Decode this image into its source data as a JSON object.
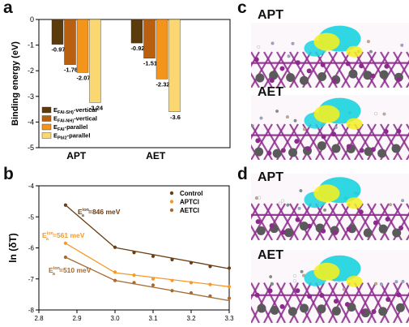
{
  "panels": {
    "a": "a",
    "b": "b",
    "c": "c",
    "d": "d"
  },
  "colors": {
    "vertical_fai_sh": "#5b3a0c",
    "vertical_fai_nh": "#b8600f",
    "fai_parallel": "#f4941b",
    "pbi_parallel": "#fbd772",
    "control": "#6b3d14",
    "aptcl": "#f59a2a",
    "aetcl": "#a76a32",
    "iso_cyan": "#17d3df",
    "iso_yellow": "#f2ef23",
    "pb": "#8e2a8d",
    "sn_gray": "#5a5a5a"
  },
  "chart_data": [
    {
      "type": "bar",
      "panel": "a",
      "categories": [
        "APT",
        "AET"
      ],
      "ylabel": "Binding energy (eV)",
      "ylim": [
        -5,
        0
      ],
      "yticks": [
        0,
        -1,
        -2,
        -3,
        -4,
        -5
      ],
      "series": [
        {
          "name": "E(FAI-SH)-vertical",
          "legend": {
            "base": "E",
            "sub": "FAI-SH)",
            "tail": "-vertical"
          },
          "values": [
            -0.97,
            -0.92
          ],
          "labels": [
            "-0.97",
            "-0.92"
          ]
        },
        {
          "name": "E(FAI-NH)-vertical",
          "legend": {
            "base": "E",
            "sub": "FAI-NH)",
            "tail": "-vertical"
          },
          "values": [
            -1.76,
            -1.51
          ],
          "labels": [
            "-1.76",
            "-1.51"
          ]
        },
        {
          "name": "EFAI-parallel",
          "legend": {
            "base": "E",
            "sub": "FAI",
            "tail": "-parallel"
          },
          "values": [
            -2.07,
            -2.32
          ],
          "labels": [
            "-2.07",
            "-2.32"
          ]
        },
        {
          "name": "EPbI2-parallel",
          "legend": {
            "base": "E",
            "sub": "PbI2",
            "tail": "-parallel"
          },
          "values": [
            -3.24,
            -3.6
          ],
          "labels": [
            "-3.24",
            "-3.6"
          ]
        }
      ]
    },
    {
      "type": "scatter",
      "panel": "b",
      "ylabel": "ln (δT)",
      "xlim": [
        2.8,
        3.3
      ],
      "ylim": [
        -8,
        -4
      ],
      "xticks": [
        "2.8",
        "2.9",
        "3.0",
        "3.1",
        "3.2",
        "3.3"
      ],
      "yticks": [
        "-4",
        "-5",
        "-6",
        "-7",
        "-8"
      ],
      "series": [
        {
          "name": "Control",
          "x": [
            2.87,
            3.0,
            3.05,
            3.1,
            3.15,
            3.2,
            3.25,
            3.3
          ],
          "y": [
            -4.62,
            -5.98,
            -6.15,
            -6.27,
            -6.38,
            -6.48,
            -6.6,
            -6.65
          ],
          "fit": [
            [
              [
                2.87,
                -4.62
              ],
              [
                3.0,
                -5.99
              ]
            ],
            [
              [
                3.0,
                -5.99
              ],
              [
                3.3,
                -6.67
              ]
            ]
          ]
        },
        {
          "name": "APTCl",
          "x": [
            2.87,
            3.0,
            3.05,
            3.1,
            3.15,
            3.2,
            3.25,
            3.3
          ],
          "y": [
            -5.85,
            -6.78,
            -6.88,
            -7.0,
            -7.05,
            -7.12,
            -7.18,
            -7.25
          ],
          "fit": [
            [
              [
                2.87,
                -5.85
              ],
              [
                3.0,
                -6.8
              ]
            ],
            [
              [
                3.0,
                -6.8
              ],
              [
                3.3,
                -7.25
              ]
            ]
          ]
        },
        {
          "name": "AETCl",
          "x": [
            2.87,
            3.0,
            3.05,
            3.1,
            3.15,
            3.2,
            3.25,
            3.3
          ],
          "y": [
            -6.3,
            -7.05,
            -7.12,
            -7.2,
            -7.38,
            -7.45,
            -7.55,
            -7.62
          ],
          "fit": [
            [
              [
                2.87,
                -6.3
              ],
              [
                3.0,
                -7.05
              ]
            ],
            [
              [
                3.0,
                -7.05
              ],
              [
                3.3,
                -7.7
              ]
            ]
          ]
        }
      ],
      "annotations": [
        {
          "base": "E",
          "sup": "ion",
          "sub": "a",
          "text": "=846 meV",
          "series": "Control"
        },
        {
          "base": "E",
          "sup": "ion",
          "sub": "a",
          "text": "=561 meV",
          "series": "APTCl"
        },
        {
          "base": "E",
          "sup": "ion",
          "sub": "a",
          "text": "=510 meV",
          "series": "AETCl"
        }
      ]
    }
  ],
  "images": {
    "c_top_title": "APT",
    "c_bottom_title": "AET",
    "d_top_title": "APT",
    "d_bottom_title": "AET"
  }
}
